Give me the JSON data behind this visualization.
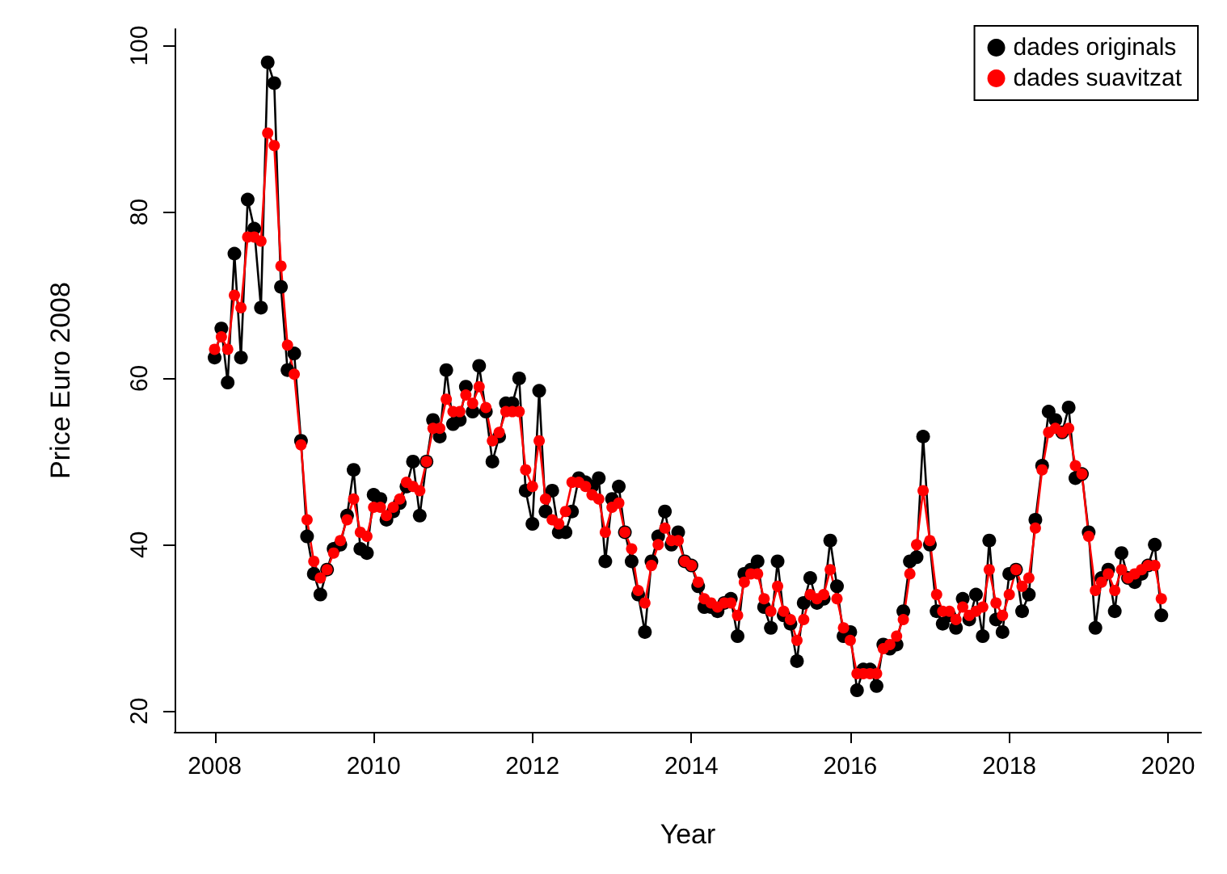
{
  "chart_data": {
    "type": "line",
    "xlabel": "Year",
    "ylabel": "Price Euro 2008",
    "x": [
      "2008-01",
      "2008-02",
      "2008-03",
      "2008-04",
      "2008-05",
      "2008-06",
      "2008-07",
      "2008-08",
      "2008-09",
      "2008-10",
      "2008-11",
      "2008-12",
      "2009-01",
      "2009-02",
      "2009-03",
      "2009-04",
      "2009-05",
      "2009-06",
      "2009-07",
      "2009-08",
      "2009-09",
      "2009-10",
      "2009-11",
      "2009-12",
      "2010-01",
      "2010-02",
      "2010-03",
      "2010-04",
      "2010-05",
      "2010-06",
      "2010-07",
      "2010-08",
      "2010-09",
      "2010-10",
      "2010-11",
      "2010-12",
      "2011-01",
      "2011-02",
      "2011-03",
      "2011-04",
      "2011-05",
      "2011-06",
      "2011-07",
      "2011-08",
      "2011-09",
      "2011-10",
      "2011-11",
      "2011-12",
      "2012-01",
      "2012-02",
      "2012-03",
      "2012-04",
      "2012-05",
      "2012-06",
      "2012-07",
      "2012-08",
      "2012-09",
      "2012-10",
      "2012-11",
      "2012-12",
      "2013-01",
      "2013-02",
      "2013-03",
      "2013-04",
      "2013-05",
      "2013-06",
      "2013-07",
      "2013-08",
      "2013-09",
      "2013-10",
      "2013-11",
      "2013-12",
      "2014-01",
      "2014-02",
      "2014-03",
      "2014-04",
      "2014-05",
      "2014-06",
      "2014-07",
      "2014-08",
      "2014-09",
      "2014-10",
      "2014-11",
      "2014-12",
      "2015-01",
      "2015-02",
      "2015-03",
      "2015-04",
      "2015-05",
      "2015-06",
      "2015-07",
      "2015-08",
      "2015-09",
      "2015-10",
      "2015-11",
      "2015-12",
      "2016-01",
      "2016-02",
      "2016-03",
      "2016-04",
      "2016-05",
      "2016-06",
      "2016-07",
      "2016-08",
      "2016-09",
      "2016-10",
      "2016-11",
      "2016-12",
      "2017-01",
      "2017-02",
      "2017-03",
      "2017-04",
      "2017-05",
      "2017-06",
      "2017-07",
      "2017-08",
      "2017-09",
      "2017-10",
      "2017-11",
      "2017-12",
      "2018-01",
      "2018-02",
      "2018-03",
      "2018-04",
      "2018-05",
      "2018-06",
      "2018-07",
      "2018-08",
      "2018-09",
      "2018-10",
      "2018-11",
      "2018-12",
      "2019-01",
      "2019-02",
      "2019-03",
      "2019-04",
      "2019-05",
      "2019-06",
      "2019-07",
      "2019-08",
      "2019-09",
      "2019-10",
      "2019-11",
      "2019-12"
    ],
    "series": [
      {
        "name": "dades originals",
        "color": "#000000",
        "values": [
          62.5,
          66,
          59.5,
          75,
          62.5,
          81.5,
          78,
          68.5,
          98,
          95.5,
          71,
          61,
          63,
          52.5,
          41,
          36.5,
          34,
          37,
          39.5,
          40,
          43.5,
          49,
          39.5,
          39,
          46,
          45.5,
          43,
          44,
          45,
          47,
          50,
          43.5,
          50,
          55,
          53,
          61,
          54.5,
          55,
          59,
          56,
          61.5,
          56,
          50,
          53,
          57,
          57,
          60,
          46.5,
          42.5,
          58.5,
          44,
          46.5,
          41.5,
          41.5,
          44,
          48,
          47.5,
          47,
          48,
          38,
          45.5,
          47,
          41.5,
          38,
          34,
          29.5,
          38,
          41,
          44,
          40,
          41.5,
          38,
          37.5,
          35,
          32.5,
          32.5,
          32,
          33,
          33.5,
          29,
          36.5,
          37,
          38,
          32.5,
          30,
          38,
          31.5,
          30.5,
          26,
          33,
          36,
          33,
          33.5,
          40.5,
          35,
          29,
          29.5,
          22.5,
          25,
          25,
          23,
          28,
          27.5,
          28,
          32,
          38,
          38.5,
          53,
          40,
          32,
          30.5,
          31.5,
          30,
          33.5,
          31,
          34,
          29,
          40.5,
          31,
          29.5,
          36.5,
          37,
          32,
          34,
          43,
          49.5,
          56,
          55,
          53.5,
          56.5,
          48,
          48.5,
          41.5,
          30,
          36,
          37,
          32,
          39,
          36,
          35.5,
          36.5,
          37.5,
          40,
          31.5
        ]
      },
      {
        "name": "dades suavitzat",
        "color": "#ff0000",
        "values": [
          63.5,
          65,
          63.5,
          70,
          68.5,
          77,
          77,
          76.5,
          89.5,
          88,
          73.5,
          64,
          60.5,
          52,
          43,
          38,
          36,
          37,
          39,
          40.5,
          43,
          45.5,
          41.5,
          41,
          44.5,
          44.5,
          43.5,
          44.5,
          45.5,
          47.5,
          47,
          46.5,
          50,
          54,
          54,
          57.5,
          56,
          56,
          58,
          57,
          59,
          56.5,
          52.5,
          53.5,
          56,
          56,
          56,
          49,
          47,
          52.5,
          45.5,
          43,
          42.5,
          44,
          47.5,
          47.5,
          47,
          46,
          45.5,
          41.5,
          44.5,
          45,
          41.5,
          39.5,
          34.5,
          33,
          37.5,
          40,
          42,
          40.5,
          40.5,
          38,
          37.5,
          35.5,
          33.5,
          33,
          32.5,
          33,
          33,
          31.5,
          35.5,
          36.5,
          36.5,
          33.5,
          32,
          35,
          32,
          31,
          28.5,
          31,
          34,
          33.5,
          34,
          37,
          33.5,
          30,
          28.5,
          24.5,
          24.5,
          24.5,
          24.5,
          27.5,
          28,
          29,
          31,
          36.5,
          40,
          46.5,
          40.5,
          34,
          32,
          32,
          31,
          32.5,
          31.5,
          32,
          32.5,
          37,
          33,
          31.5,
          34,
          37,
          35,
          36,
          42,
          49,
          53.5,
          54,
          53.5,
          54,
          49.5,
          48.5,
          41,
          34.5,
          35.5,
          36.5,
          34.5,
          37,
          36,
          36.5,
          37,
          37.5,
          37.5,
          33.5
        ]
      }
    ],
    "xlim": [
      "2007-07",
      "2020-06"
    ],
    "xticks": [
      "2008",
      "2010",
      "2012",
      "2014",
      "2016",
      "2018",
      "2020"
    ],
    "ylim": [
      17.5,
      102
    ],
    "yticks": [
      20,
      40,
      60,
      80,
      100
    ],
    "grid": false,
    "legend": "top right",
    "marker": "circle",
    "line_style": "solid"
  }
}
